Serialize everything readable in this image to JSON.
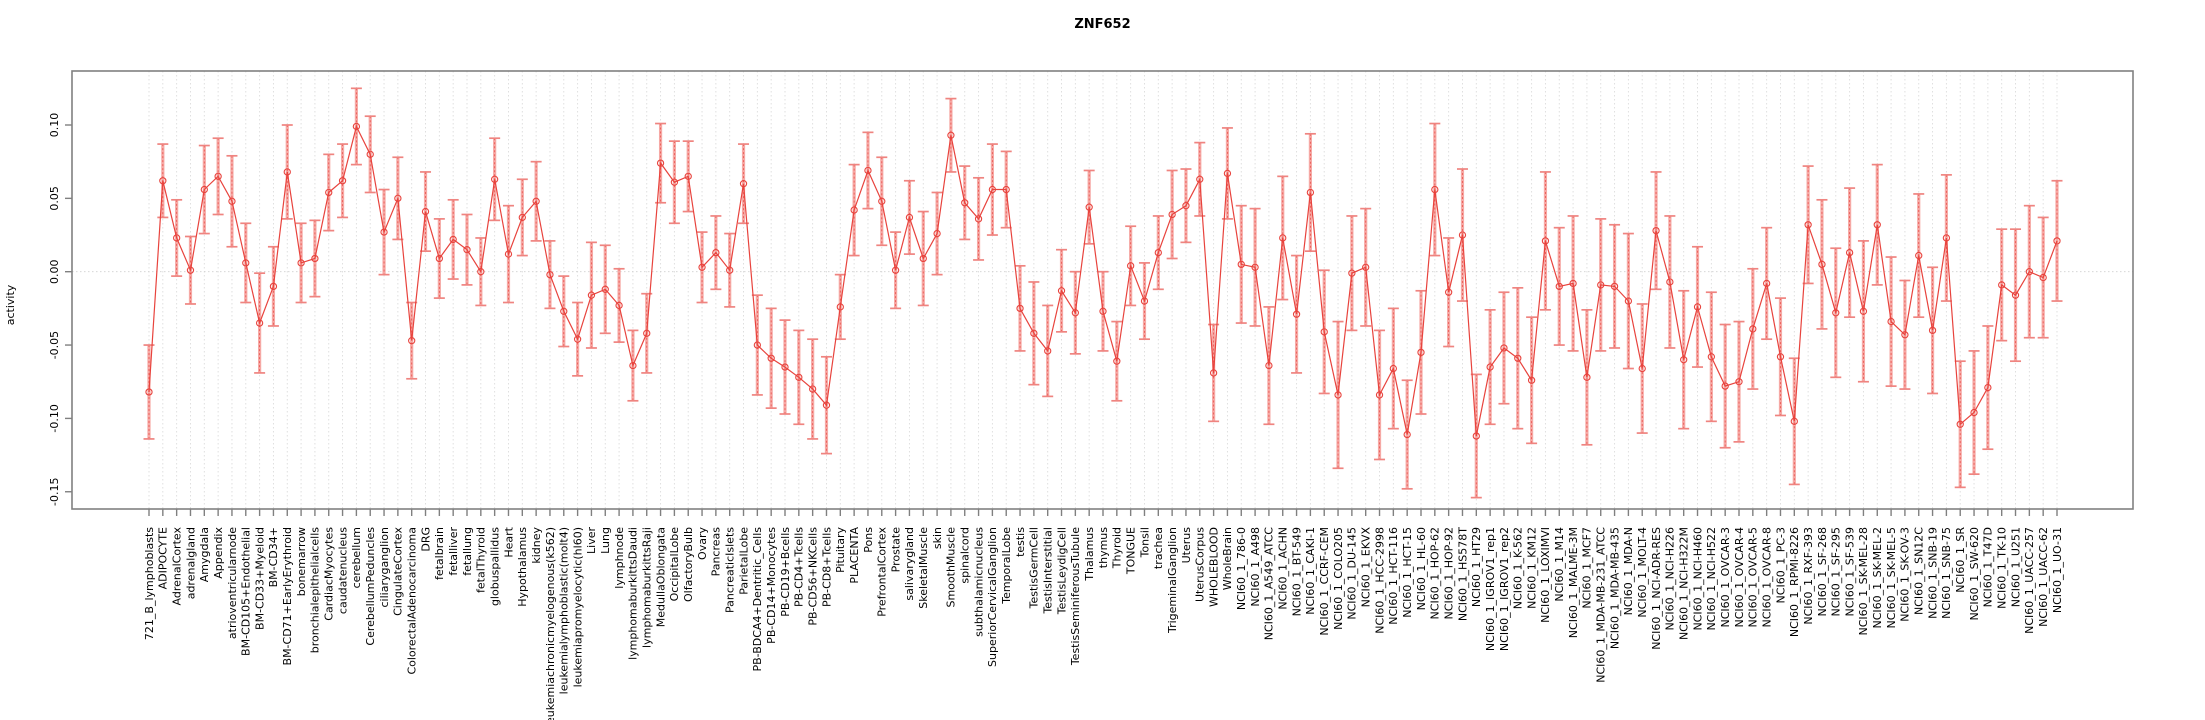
{
  "chart_data": {
    "type": "line",
    "title": "ZNF652",
    "ylabel": "activity",
    "xlabel": "",
    "legend": "none",
    "grid": "vertical dotted gridline per category; dotted horizontal line at y=0",
    "marker": "open-circle with vertical error bars",
    "ylim": [
      -0.162,
      0.137
    ],
    "yticks": [
      0.1,
      0.05,
      0.0,
      -0.05,
      -0.1,
      -0.15
    ],
    "ytick_labels": [
      "0.10",
      "0.05",
      "0.00",
      "-0.05",
      "-0.10",
      "-0.15"
    ],
    "categories": [
      "721_B_lymphoblasts",
      "ADIPOCYTE",
      "AdrenalCortex",
      "adrenalgland",
      "Amygdala",
      "Appendix",
      "atrioventricularnode",
      "BM-CD105+Endothelial",
      "BM-CD33+Myeloid",
      "BM-CD34+",
      "BM-CD71+EarlyErythroid",
      "bonemarrow",
      "bronchialepithelialcells",
      "CardiacMyocytes",
      "caudatenucleus",
      "cerebellum",
      "CerebellumPeduncles",
      "ciliaryganglion",
      "CingulateCortex",
      "ColorectalAdenocarcinoma",
      "DRG",
      "fetalbrain",
      "fetalliver",
      "fetallung",
      "fetalThyroid",
      "globuspallidus",
      "Heart",
      "Hypothalamus",
      "kidney",
      "leukemiachronicmyelogenous(k562)",
      "leukemialymphoblastic(molt4)",
      "leukemiapromyelocytic(hl60)",
      "Liver",
      "Lung",
      "lymphnode",
      "lymphomaburkittsDaudi",
      "lymphomaburkittsRaji",
      "MedullaOblongata",
      "OccipitalLobe",
      "OlfactoryBulb",
      "Ovary",
      "Pancreas",
      "PancreaticIslets",
      "ParietalLobe",
      "PB-BDCA4+Dentritic_Cells",
      "PB-CD14+Monocytes",
      "PB-CD19+Bcells",
      "PB-CD4+Tcells",
      "PB-CD56+NKCells",
      "PB-CD8+Tcells",
      "Pituitary",
      "PLACENTA",
      "Pons",
      "PrefrontalCortex",
      "Prostate",
      "salivarygland",
      "SkeletalMuscle",
      "skin",
      "SmoothMuscle",
      "spinalcord",
      "subthalamicnucleus",
      "SuperiorCervicalGanglion",
      "TemporalLobe",
      "testis",
      "TestisGermCell",
      "TestisInterstitial",
      "TestisLeydigCell",
      "TestisSeminiferousTubule",
      "Thalamus",
      "thymus",
      "Thyroid",
      "TONGUE",
      "Tonsil",
      "trachea",
      "TrigeminalGanglion",
      "Uterus",
      "UterusCorpus",
      "WHOLEBLOOD",
      "WholeBrain",
      "NCI60_1_786-0",
      "NCI60_1_A498",
      "NCI60_1_A549_ATCC",
      "NCI60_1_ACHN",
      "NCI60_1_BT-549",
      "NCI60_1_CAKI-1",
      "NCI60_1_CCRF-CEM",
      "NCI60_1_COLO205",
      "NCI60_1_DU-145",
      "NCI60_1_EKVX",
      "NCI60_1_HCC-2998",
      "NCI60_1_HCT-116",
      "NCI60_1_HCT-15",
      "NCI60_1_HL-60",
      "NCI60_1_HOP-62",
      "NCI60_1_HOP-92",
      "NCI60_1_HS578T",
      "NCI60_1_HT29",
      "NCI60_1_IGROV1_rep1",
      "NCI60_1_IGROV1_rep2",
      "NCI60_1_K-562",
      "NCI60_1_KM12",
      "NCI60_1_LOXIMVI",
      "NCI60_1_M14",
      "NCI60_1_MALME-3M",
      "NCI60_1_MCF7",
      "NCI60_1_MDA-MB-231_ATCC",
      "NCI60_1_MDA-MB-435",
      "NCI60_1_MDA-N",
      "NCI60_1_MOLT-4",
      "NCI60_1_NCI-ADR-RES",
      "NCI60_1_NCI-H226",
      "NCI60_1_NCI-H322M",
      "NCI60_1_NCI-H460",
      "NCI60_1_NCI-H522",
      "NCI60_1_OVCAR-3",
      "NCI60_1_OVCAR-4",
      "NCI60_1_OVCAR-5",
      "NCI60_1_OVCAR-8",
      "NCI60_1_PC-3",
      "NCI60_1_RPMI-8226",
      "NCI60_1_RXF-393",
      "NCI60_1_SF-268",
      "NCI60_1_SF-295",
      "NCI60_1_SF-539",
      "NCI60_1_SK-MEL-28",
      "NCI60_1_SK-MEL-2",
      "NCI60_1_SK-MEL-5",
      "NCI60_1_SK-OV-3",
      "NCI60_1_SN12C",
      "NCI60_1_SNB-19",
      "NCI60_1_SNB-75",
      "NCI60_1_SR",
      "NCI60_1_SW-620",
      "NCI60_1_T47D",
      "NCI60_1_TK-10",
      "NCI60_1_U251",
      "NCI60_1_UACC-257",
      "NCI60_1_UACC-62",
      "NCI60_1_UO-31"
    ],
    "values": [
      -0.082,
      0.062,
      0.023,
      0.001,
      0.056,
      0.065,
      0.048,
      0.006,
      -0.035,
      -0.01,
      0.068,
      0.006,
      0.009,
      0.054,
      0.062,
      0.099,
      0.08,
      0.027,
      0.05,
      -0.047,
      0.041,
      0.009,
      0.022,
      0.015,
      0.0,
      0.063,
      0.012,
      0.037,
      0.048,
      -0.002,
      -0.027,
      -0.046,
      -0.016,
      -0.012,
      -0.023,
      -0.064,
      -0.042,
      0.074,
      0.061,
      0.065,
      0.003,
      0.013,
      0.001,
      0.06,
      -0.05,
      -0.059,
      -0.065,
      -0.072,
      -0.08,
      -0.091,
      -0.024,
      0.042,
      0.069,
      0.048,
      0.001,
      0.037,
      0.009,
      0.026,
      0.093,
      0.047,
      0.036,
      0.056,
      0.056,
      -0.025,
      -0.042,
      -0.054,
      -0.013,
      -0.028,
      0.044,
      -0.027,
      -0.061,
      0.004,
      -0.02,
      0.013,
      0.039,
      0.045,
      0.063,
      -0.069,
      0.067,
      0.005,
      0.003,
      -0.064,
      0.023,
      -0.029,
      0.054,
      -0.041,
      -0.084,
      -0.001,
      0.003,
      -0.084,
      -0.066,
      -0.111,
      -0.055,
      0.056,
      -0.014,
      0.025,
      -0.112,
      -0.065,
      -0.052,
      -0.059,
      -0.074,
      0.021,
      -0.01,
      -0.008,
      -0.072,
      -0.009,
      -0.01,
      -0.02,
      -0.066,
      0.028,
      -0.007,
      -0.06,
      -0.024,
      -0.058,
      -0.078,
      -0.075,
      -0.039,
      -0.008,
      -0.058,
      -0.102,
      0.032,
      0.005,
      -0.028,
      0.013,
      -0.027,
      0.032,
      -0.034,
      -0.043,
      0.011,
      -0.04,
      0.023,
      -0.104,
      -0.096,
      -0.079,
      -0.009,
      -0.016,
      0.0,
      -0.004,
      0.021
    ],
    "errors": [
      0.032,
      0.025,
      0.026,
      0.023,
      0.03,
      0.026,
      0.031,
      0.027,
      0.034,
      0.027,
      0.032,
      0.027,
      0.026,
      0.026,
      0.025,
      0.026,
      0.026,
      0.029,
      0.028,
      0.026,
      0.027,
      0.027,
      0.027,
      0.024,
      0.023,
      0.028,
      0.033,
      0.026,
      0.027,
      0.023,
      0.024,
      0.025,
      0.036,
      0.03,
      0.025,
      0.024,
      0.027,
      0.027,
      0.028,
      0.024,
      0.024,
      0.025,
      0.025,
      0.027,
      0.034,
      0.034,
      0.032,
      0.032,
      0.034,
      0.033,
      0.022,
      0.031,
      0.026,
      0.03,
      0.026,
      0.025,
      0.032,
      0.028,
      0.025,
      0.025,
      0.028,
      0.031,
      0.026,
      0.029,
      0.035,
      0.031,
      0.028,
      0.028,
      0.025,
      0.027,
      0.027,
      0.027,
      0.026,
      0.025,
      0.03,
      0.025,
      0.025,
      0.033,
      0.031,
      0.04,
      0.04,
      0.04,
      0.042,
      0.04,
      0.04,
      0.042,
      0.05,
      0.039,
      0.04,
      0.044,
      0.041,
      0.037,
      0.042,
      0.045,
      0.037,
      0.045,
      0.042,
      0.039,
      0.038,
      0.048,
      0.043,
      0.047,
      0.04,
      0.046,
      0.046,
      0.045,
      0.042,
      0.046,
      0.044,
      0.04,
      0.045,
      0.047,
      0.041,
      0.044,
      0.042,
      0.041,
      0.041,
      0.038,
      0.04,
      0.043,
      0.04,
      0.044,
      0.044,
      0.044,
      0.048,
      0.041,
      0.044,
      0.037,
      0.042,
      0.043,
      0.043,
      0.043,
      0.042,
      0.042,
      0.038,
      0.045,
      0.045,
      0.041,
      0.041
    ],
    "colors": {
      "point_line": "#e8433d",
      "error_bar": "#f6a9a5",
      "error_cap": "#ef8480",
      "gridline": "#dcdcdc",
      "zero_line": "#d0d0d0",
      "axis_box": "#808080",
      "text": "#000000"
    }
  }
}
